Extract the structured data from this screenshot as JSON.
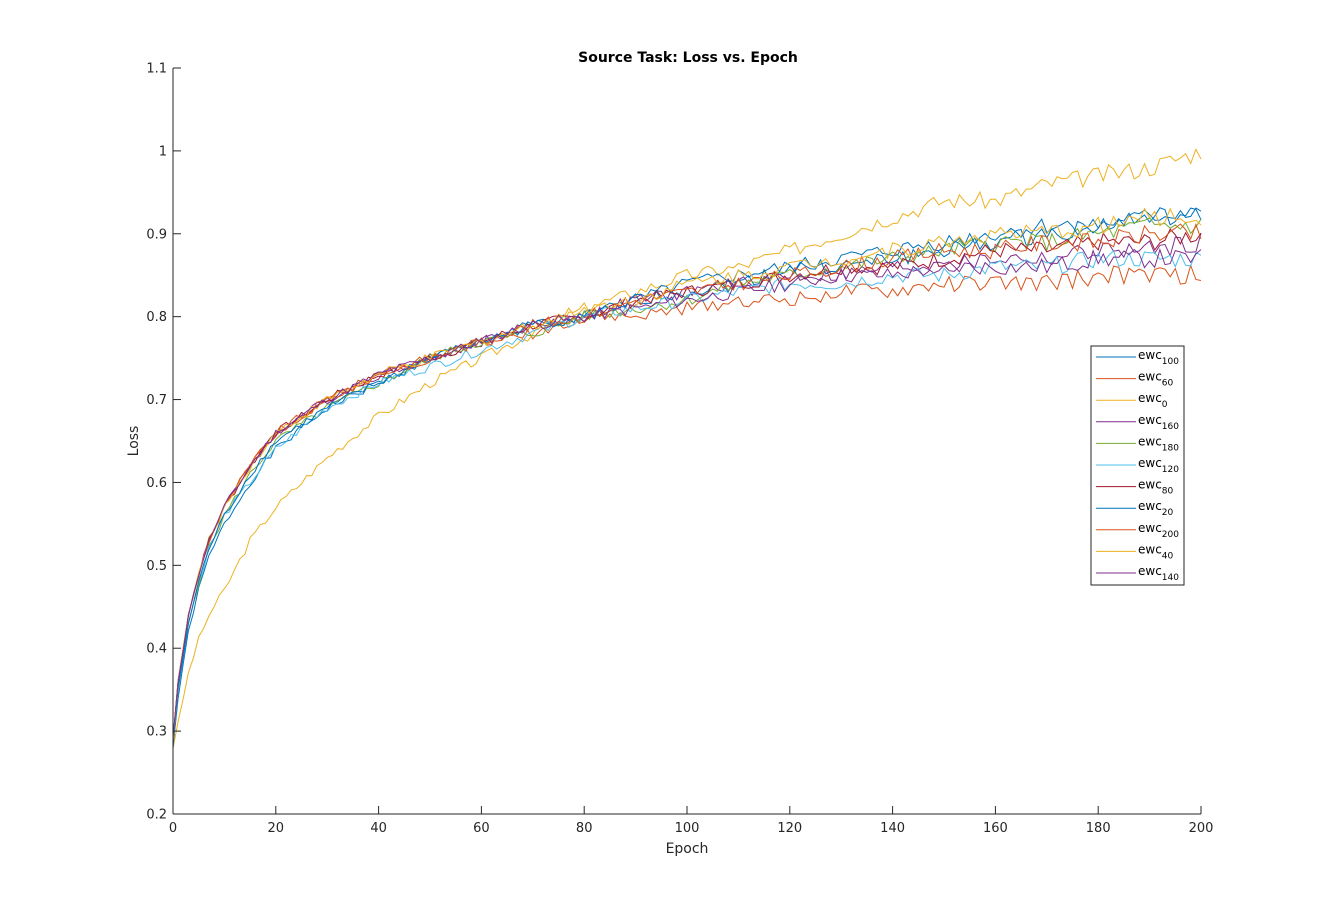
{
  "chart_data": {
    "type": "line",
    "title": "Source Task: Loss vs. Epoch",
    "xlabel": "Epoch",
    "ylabel": "Loss",
    "xlim": [
      0,
      200
    ],
    "ylim": [
      0.2,
      1.1
    ],
    "xticks": [
      0,
      20,
      40,
      60,
      80,
      100,
      120,
      140,
      160,
      180,
      200
    ],
    "yticks": [
      0.2,
      0.3,
      0.4,
      0.5,
      0.6,
      0.7,
      0.8,
      0.9,
      1,
      1.1
    ],
    "xtick_labels": [
      "0",
      "20",
      "40",
      "60",
      "80",
      "100",
      "120",
      "140",
      "160",
      "180",
      "200"
    ],
    "ytick_labels": [
      "0.2",
      "0.3",
      "0.4",
      "0.5",
      "0.6",
      "0.7",
      "0.8",
      "0.9",
      "1",
      "1.1"
    ],
    "grid": false,
    "legend_position": "right",
    "x_sample": [
      0,
      1,
      2,
      3,
      5,
      7,
      10,
      15,
      20,
      30,
      40,
      50,
      60,
      70,
      80,
      90,
      100,
      110,
      120,
      130,
      140,
      150,
      160,
      170,
      180,
      190,
      200
    ],
    "series": [
      {
        "name": "ewc",
        "sub": "100",
        "color": "#0072BD",
        "values": [
          0.28,
          0.34,
          0.38,
          0.42,
          0.47,
          0.51,
          0.55,
          0.6,
          0.64,
          0.69,
          0.72,
          0.75,
          0.77,
          0.79,
          0.8,
          0.82,
          0.83,
          0.84,
          0.86,
          0.86,
          0.87,
          0.88,
          0.89,
          0.9,
          0.91,
          0.92,
          0.92
        ]
      },
      {
        "name": "ewc",
        "sub": "60",
        "color": "#D95319",
        "values": [
          0.29,
          0.36,
          0.4,
          0.44,
          0.49,
          0.53,
          0.57,
          0.62,
          0.66,
          0.7,
          0.73,
          0.75,
          0.77,
          0.78,
          0.8,
          0.8,
          0.81,
          0.82,
          0.82,
          0.83,
          0.83,
          0.84,
          0.84,
          0.84,
          0.85,
          0.85,
          0.85
        ]
      },
      {
        "name": "ewc",
        "sub": "0",
        "color": "#EDB120",
        "values": [
          0.28,
          0.31,
          0.34,
          0.37,
          0.41,
          0.44,
          0.47,
          0.53,
          0.57,
          0.63,
          0.68,
          0.72,
          0.75,
          0.78,
          0.81,
          0.83,
          0.85,
          0.86,
          0.88,
          0.9,
          0.92,
          0.94,
          0.94,
          0.96,
          0.97,
          0.98,
          1.0
        ]
      },
      {
        "name": "ewc",
        "sub": "160",
        "color": "#7E2F8E",
        "values": [
          0.29,
          0.36,
          0.4,
          0.44,
          0.49,
          0.53,
          0.57,
          0.62,
          0.66,
          0.7,
          0.73,
          0.75,
          0.77,
          0.79,
          0.8,
          0.82,
          0.83,
          0.84,
          0.85,
          0.85,
          0.86,
          0.86,
          0.87,
          0.87,
          0.88,
          0.88,
          0.89
        ]
      },
      {
        "name": "ewc",
        "sub": "180",
        "color": "#77AC30",
        "values": [
          0.28,
          0.35,
          0.39,
          0.43,
          0.48,
          0.52,
          0.56,
          0.61,
          0.65,
          0.69,
          0.72,
          0.75,
          0.77,
          0.78,
          0.8,
          0.81,
          0.82,
          0.84,
          0.85,
          0.86,
          0.87,
          0.88,
          0.89,
          0.89,
          0.9,
          0.91,
          0.91
        ]
      },
      {
        "name": "ewc",
        "sub": "120",
        "color": "#4DBEEE",
        "values": [
          0.28,
          0.35,
          0.39,
          0.43,
          0.48,
          0.52,
          0.56,
          0.6,
          0.64,
          0.69,
          0.72,
          0.74,
          0.76,
          0.78,
          0.8,
          0.81,
          0.82,
          0.83,
          0.84,
          0.84,
          0.85,
          0.85,
          0.86,
          0.86,
          0.87,
          0.87,
          0.87
        ]
      },
      {
        "name": "ewc",
        "sub": "80",
        "color": "#A2142F",
        "values": [
          0.29,
          0.36,
          0.4,
          0.44,
          0.49,
          0.53,
          0.57,
          0.62,
          0.66,
          0.7,
          0.73,
          0.75,
          0.77,
          0.79,
          0.8,
          0.82,
          0.83,
          0.84,
          0.85,
          0.86,
          0.86,
          0.87,
          0.88,
          0.88,
          0.89,
          0.89,
          0.9
        ]
      },
      {
        "name": "ewc",
        "sub": "20",
        "color": "#0072BD",
        "values": [
          0.28,
          0.35,
          0.39,
          0.43,
          0.48,
          0.52,
          0.56,
          0.61,
          0.65,
          0.69,
          0.72,
          0.75,
          0.77,
          0.79,
          0.8,
          0.82,
          0.84,
          0.85,
          0.86,
          0.87,
          0.88,
          0.89,
          0.9,
          0.91,
          0.91,
          0.92,
          0.93
        ]
      },
      {
        "name": "ewc",
        "sub": "200",
        "color": "#D95319",
        "values": [
          0.29,
          0.36,
          0.4,
          0.44,
          0.49,
          0.53,
          0.57,
          0.62,
          0.66,
          0.7,
          0.73,
          0.75,
          0.77,
          0.79,
          0.8,
          0.82,
          0.83,
          0.84,
          0.85,
          0.86,
          0.87,
          0.88,
          0.88,
          0.89,
          0.89,
          0.9,
          0.9
        ]
      },
      {
        "name": "ewc",
        "sub": "40",
        "color": "#EDB120",
        "values": [
          0.29,
          0.36,
          0.4,
          0.44,
          0.49,
          0.53,
          0.57,
          0.62,
          0.66,
          0.7,
          0.73,
          0.75,
          0.77,
          0.79,
          0.81,
          0.82,
          0.84,
          0.85,
          0.86,
          0.87,
          0.88,
          0.89,
          0.9,
          0.9,
          0.91,
          0.92,
          0.92
        ]
      },
      {
        "name": "ewc",
        "sub": "140",
        "color": "#7E2F8E",
        "values": [
          0.29,
          0.36,
          0.4,
          0.44,
          0.49,
          0.53,
          0.57,
          0.62,
          0.66,
          0.7,
          0.73,
          0.75,
          0.77,
          0.79,
          0.8,
          0.81,
          0.82,
          0.83,
          0.84,
          0.85,
          0.85,
          0.86,
          0.86,
          0.86,
          0.87,
          0.87,
          0.87
        ]
      }
    ]
  }
}
